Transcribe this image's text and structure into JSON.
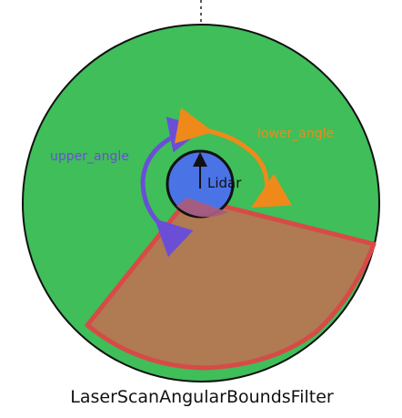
{
  "title": "LaserScanAngularBoundsFilter",
  "labels": {
    "upper_angle": "upper_angle",
    "lower_angle": "lower_angle",
    "lidar": "Lidar"
  },
  "colors": {
    "field_fill": "#3fbe5a",
    "field_stroke": "#111111",
    "lidar_fill": "#4a73e6",
    "lidar_stroke": "#111111",
    "wedge_fill": "#b07a52",
    "wedge_stroke": "#d84a47",
    "upper_arrow": "#6a4fd6",
    "lower_arrow": "#ef8a1a",
    "text_dark": "#111111"
  }
}
